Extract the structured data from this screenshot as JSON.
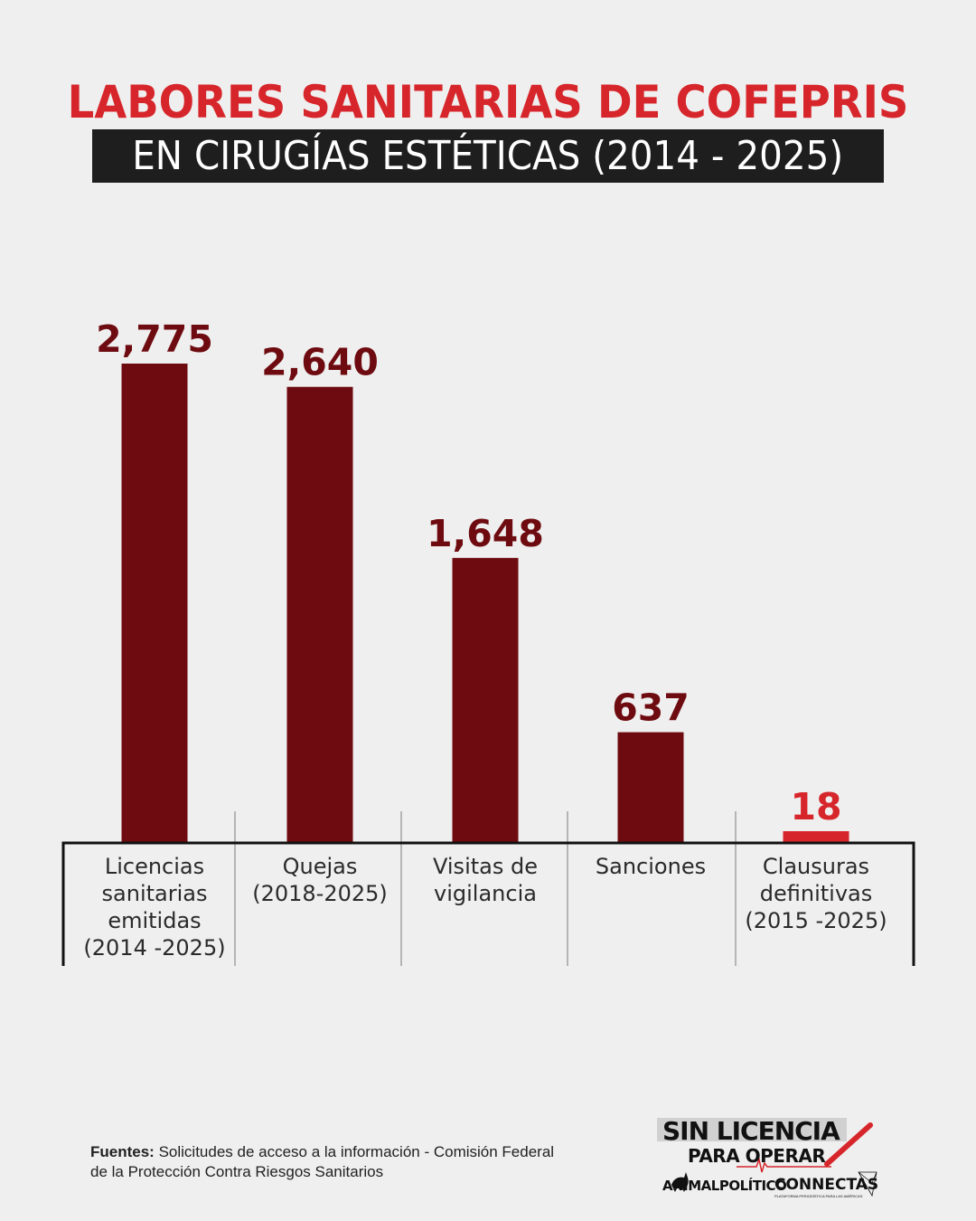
{
  "header": {
    "title_line1": "LABORES SANITARIAS DE COFEPRIS",
    "title_line2": "EN CIRUGÍAS ESTÉTICAS (2014 - 2025)"
  },
  "chart_data": {
    "type": "bar",
    "title": "LABORES SANITARIAS DE COFEPRIS EN CIRUGÍAS ESTÉTICAS (2014 - 2025)",
    "categories": [
      [
        "Licencias",
        "sanitarias",
        "emitidas",
        "(2014 -2025)"
      ],
      [
        "Quejas",
        "(2018-2025)"
      ],
      [
        "Visitas de",
        "vigilancia"
      ],
      [
        "Sanciones"
      ],
      [
        "Clausuras",
        "definitivas",
        "(2015 -2025)"
      ]
    ],
    "values": [
      2775,
      2640,
      1648,
      637,
      18
    ],
    "value_labels": [
      "2,775",
      "2,640",
      "1,648",
      "637",
      "18"
    ],
    "colors": [
      "#6e0b10",
      "#6e0b10",
      "#6e0b10",
      "#6e0b10",
      "#d7262b"
    ],
    "label_colors": [
      "#6e0b10",
      "#6e0b10",
      "#6e0b10",
      "#6e0b10",
      "#d7262b"
    ],
    "ylim": [
      0,
      2775
    ],
    "grid": false,
    "xlabel": "",
    "ylabel": ""
  },
  "footer": {
    "source_label": "Fuentes:",
    "source_text": "Solicitudes de acceso a la información - Comisión Federal de la Protección Contra Riesgos Sanitarios",
    "logo_main_line1": "SIN LICENCIA",
    "logo_main_line2": "PARA OPERAR",
    "logo_partner1": "ANIMALPOLÍTICO",
    "logo_partner2": "CONNECTAS",
    "logo_partner2_sub": "PLATAFORMA PERIODÍSTICA PARA LAS AMÉRICAS"
  }
}
